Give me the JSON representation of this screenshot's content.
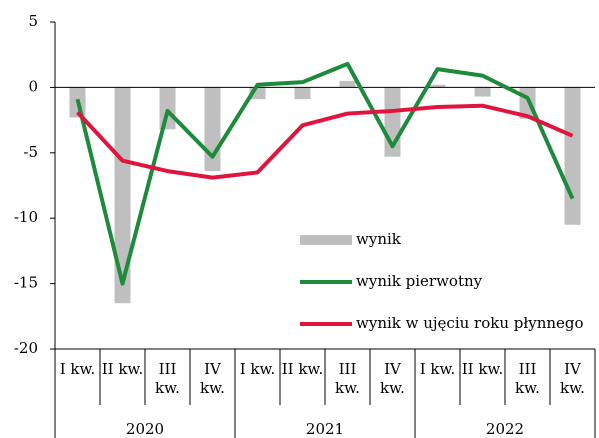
{
  "chart_data": {
    "type": "bar-line",
    "categories": [
      "I kw.",
      "II kw.",
      "III kw.",
      "IV kw.",
      "I kw.",
      "II kw.",
      "III kw.",
      "IV kw.",
      "I kw.",
      "II kw.",
      "III kw.",
      "IV kw."
    ],
    "years": [
      "2020",
      "2021",
      "2022"
    ],
    "series": [
      {
        "name": "wynik",
        "type": "bar",
        "color": "#bfbfbf",
        "values": [
          -2.3,
          -16.5,
          -3.2,
          -6.4,
          -0.9,
          -0.9,
          0.5,
          -5.3,
          0.2,
          -0.7,
          -2.4,
          -10.5
        ]
      },
      {
        "name": "wynik pierwotny",
        "type": "line",
        "color": "#1e8a3c",
        "values": [
          -0.9,
          -15.0,
          -1.8,
          -5.3,
          0.2,
          0.4,
          1.8,
          -4.5,
          1.4,
          0.9,
          -0.8,
          -8.5
        ]
      },
      {
        "name": "wynik w ujęciu roku płynnego",
        "type": "line",
        "color": "#e0143c",
        "values": [
          -1.9,
          -5.6,
          -6.4,
          -6.9,
          -6.5,
          -2.9,
          -2.0,
          -1.8,
          -1.5,
          -1.4,
          -2.2,
          -3.7
        ]
      }
    ],
    "ylim": [
      -20,
      5
    ],
    "yticks": [
      -20,
      -15,
      -10,
      -5,
      0,
      5
    ]
  }
}
